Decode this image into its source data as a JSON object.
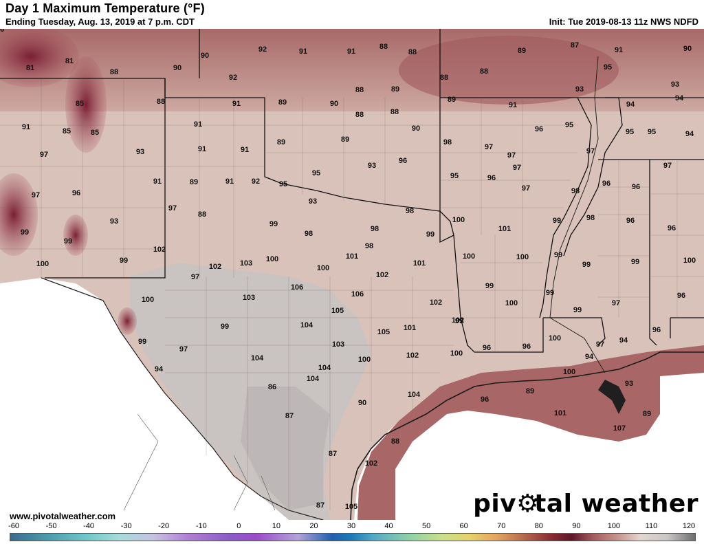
{
  "header": {
    "title": "Day 1 Maximum Temperature (°F)",
    "subtitle": "Ending Tuesday, Aug. 13, 2019 at 7 p.m. CDT",
    "init": "Init: Tue 2019-08-13 11z NWS NDFD"
  },
  "footer": {
    "site": "www.pivotalweather.com",
    "brand_pre": "piv",
    "brand_post": "tal weather"
  },
  "colorbar": {
    "ticks": [
      "-60",
      "-50",
      "-40",
      "-30",
      "-20",
      "-10",
      "0",
      "10",
      "20",
      "30",
      "40",
      "50",
      "60",
      "70",
      "80",
      "90",
      "100",
      "110",
      "120"
    ]
  },
  "map_labels": [
    {
      "t": "81"
    },
    {
      "t": "81"
    },
    {
      "t": "88"
    },
    {
      "t": "90"
    },
    {
      "t": "90"
    },
    {
      "t": "92"
    },
    {
      "t": "91"
    },
    {
      "t": "91"
    },
    {
      "t": "88"
    },
    {
      "t": "88"
    },
    {
      "t": "89"
    },
    {
      "t": "87"
    },
    {
      "t": "91"
    },
    {
      "t": "90"
    },
    {
      "t": "92"
    },
    {
      "t": "88"
    },
    {
      "t": "88"
    },
    {
      "t": "93"
    },
    {
      "t": "95"
    },
    {
      "t": "93"
    },
    {
      "t": "85"
    },
    {
      "t": "88"
    },
    {
      "t": "91"
    },
    {
      "t": "89"
    },
    {
      "t": "90"
    },
    {
      "t": "88"
    },
    {
      "t": "89"
    },
    {
      "t": "88"
    },
    {
      "t": "89"
    },
    {
      "t": "91"
    },
    {
      "t": "94"
    },
    {
      "t": "94"
    },
    {
      "t": "91"
    },
    {
      "t": "85"
    },
    {
      "t": "85"
    },
    {
      "t": "91"
    },
    {
      "t": "88"
    },
    {
      "t": "90"
    },
    {
      "t": "96"
    },
    {
      "t": "95"
    },
    {
      "t": "95"
    },
    {
      "t": "95"
    },
    {
      "t": "94"
    },
    {
      "t": "97"
    },
    {
      "t": "93"
    },
    {
      "t": "91"
    },
    {
      "t": "91"
    },
    {
      "t": "89"
    },
    {
      "t": "89"
    },
    {
      "t": "98"
    },
    {
      "t": "97"
    },
    {
      "t": "97"
    },
    {
      "t": "97"
    },
    {
      "t": "97"
    },
    {
      "t": "93"
    },
    {
      "t": "96"
    },
    {
      "t": "97"
    },
    {
      "t": "91"
    },
    {
      "t": "89"
    },
    {
      "t": "91"
    },
    {
      "t": "92"
    },
    {
      "t": "95"
    },
    {
      "t": "95"
    },
    {
      "t": "95"
    },
    {
      "t": "96"
    },
    {
      "t": "98"
    },
    {
      "t": "96"
    },
    {
      "t": "96"
    },
    {
      "t": "97"
    },
    {
      "t": "96"
    },
    {
      "t": "88"
    },
    {
      "t": "93"
    },
    {
      "t": "97"
    },
    {
      "t": "98"
    },
    {
      "t": "97"
    },
    {
      "t": "93"
    },
    {
      "t": "99"
    },
    {
      "t": "98"
    },
    {
      "t": "98"
    },
    {
      "t": "99"
    },
    {
      "t": "100"
    },
    {
      "t": "99"
    },
    {
      "t": "98"
    },
    {
      "t": "96"
    },
    {
      "t": "96"
    },
    {
      "t": "99"
    },
    {
      "t": "99"
    },
    {
      "t": "100"
    },
    {
      "t": "102"
    },
    {
      "t": "98"
    },
    {
      "t": "101"
    },
    {
      "t": "101"
    },
    {
      "t": "101"
    },
    {
      "t": "100"
    },
    {
      "t": "99"
    },
    {
      "t": "99"
    },
    {
      "t": "99"
    },
    {
      "t": "100"
    },
    {
      "t": "99"
    },
    {
      "t": "102"
    },
    {
      "t": "103"
    },
    {
      "t": "100"
    },
    {
      "t": "100"
    },
    {
      "t": "100"
    },
    {
      "t": "97"
    },
    {
      "t": "102"
    },
    {
      "t": "99"
    },
    {
      "t": "100"
    },
    {
      "t": "99"
    },
    {
      "t": "96"
    },
    {
      "t": "100"
    },
    {
      "t": "106"
    },
    {
      "t": "103"
    },
    {
      "t": "106"
    },
    {
      "t": "102"
    },
    {
      "t": "99"
    },
    {
      "t": "99"
    },
    {
      "t": "97"
    },
    {
      "t": "99"
    },
    {
      "t": "104"
    },
    {
      "t": "105"
    },
    {
      "t": "102"
    },
    {
      "t": "99"
    },
    {
      "t": "97"
    },
    {
      "t": "103"
    },
    {
      "t": "105"
    },
    {
      "t": "101"
    },
    {
      "t": "100"
    },
    {
      "t": "97"
    },
    {
      "t": "94"
    },
    {
      "t": "96"
    },
    {
      "t": "94"
    },
    {
      "t": "104"
    },
    {
      "t": "100"
    },
    {
      "t": "104"
    },
    {
      "t": "100"
    },
    {
      "t": "96"
    },
    {
      "t": "96"
    },
    {
      "t": "94"
    },
    {
      "t": "104"
    },
    {
      "t": "102"
    },
    {
      "t": "100"
    },
    {
      "t": "93"
    },
    {
      "t": "86"
    },
    {
      "t": "104"
    },
    {
      "t": "96"
    },
    {
      "t": "89"
    },
    {
      "t": "90"
    },
    {
      "t": "101"
    },
    {
      "t": "89"
    },
    {
      "t": "87"
    },
    {
      "t": "107"
    },
    {
      "t": "88"
    },
    {
      "t": "87"
    },
    {
      "t": "102"
    },
    {
      "t": "87"
    },
    {
      "t": "105"
    },
    {
      "t": "96"
    }
  ]
}
